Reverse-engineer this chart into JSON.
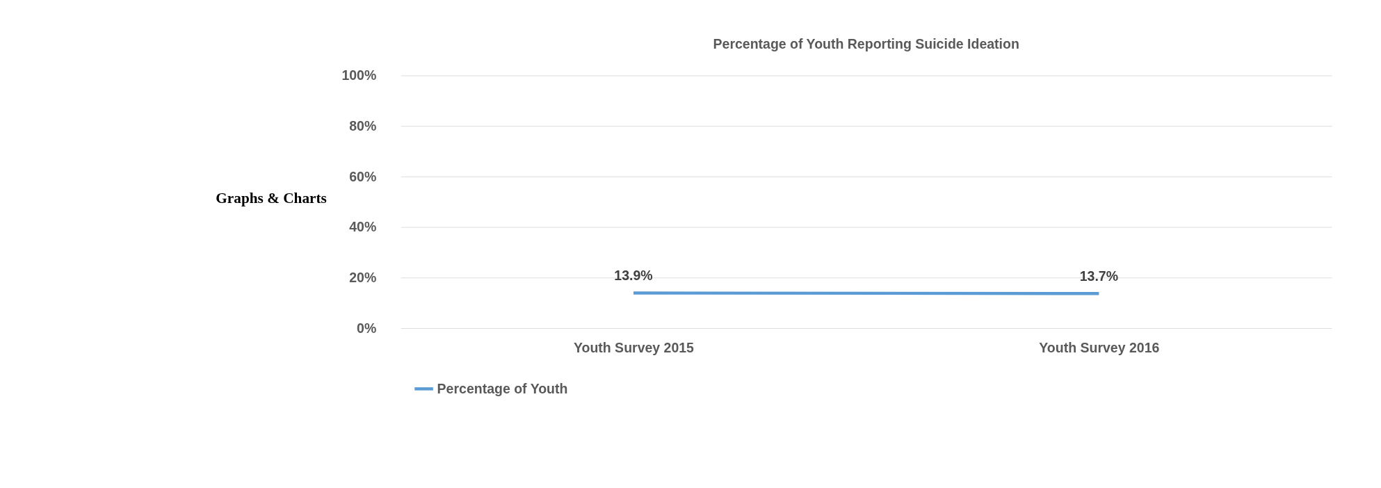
{
  "chart_data": {
    "type": "line",
    "title": "Percentage of Youth Reporting Suicide Ideation",
    "categories": [
      "Youth Survey 2015",
      "Youth Survey 2016"
    ],
    "series": [
      {
        "name": "Percentage of Youth",
        "color": "#5b9bd5",
        "values": [
          13.9,
          13.7
        ],
        "value_labels": [
          "13.9%",
          "13.7%"
        ]
      }
    ],
    "ylim": [
      0,
      100
    ],
    "yticks": [
      {
        "value": 0,
        "label": "0%"
      },
      {
        "value": 20,
        "label": "20%"
      },
      {
        "value": 40,
        "label": "40%"
      },
      {
        "value": 60,
        "label": "60%"
      },
      {
        "value": 80,
        "label": "80%"
      },
      {
        "value": 100,
        "label": "100%"
      }
    ],
    "grid": "y",
    "legend": "bottom",
    "marker": "none",
    "line_style": "solid",
    "annotations": [
      "Graphs & Charts"
    ]
  }
}
